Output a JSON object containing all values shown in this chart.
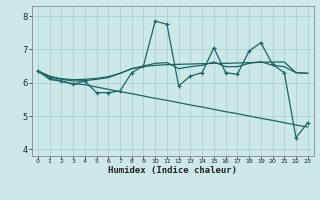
{
  "xlabel": "Humidex (Indice chaleur)",
  "bg_color": "#cce8e8",
  "grid_color": "#b8d8d8",
  "line_color": "#1a6666",
  "xlim": [
    -0.5,
    23.5
  ],
  "ylim": [
    3.8,
    8.3
  ],
  "xticks": [
    0,
    1,
    2,
    3,
    4,
    5,
    6,
    7,
    8,
    9,
    10,
    11,
    12,
    13,
    14,
    15,
    16,
    17,
    18,
    19,
    20,
    21,
    22,
    23
  ],
  "yticks": [
    4,
    5,
    6,
    7,
    8
  ],
  "series_main": [
    6.35,
    6.15,
    6.05,
    5.95,
    6.05,
    5.7,
    5.7,
    5.75,
    6.3,
    6.5,
    7.85,
    7.75,
    5.9,
    6.2,
    6.3,
    7.05,
    6.3,
    6.25,
    6.95,
    7.2,
    6.55,
    6.3,
    4.35,
    4.8
  ],
  "series_trend1": [
    6.35,
    6.18,
    6.12,
    6.09,
    6.1,
    6.13,
    6.18,
    6.28,
    6.42,
    6.48,
    6.52,
    6.54,
    6.55,
    6.56,
    6.57,
    6.58,
    6.58,
    6.59,
    6.6,
    6.61,
    6.62,
    6.62,
    6.3,
    6.28
  ],
  "series_trend2": [
    6.35,
    6.2,
    6.1,
    6.05,
    6.06,
    6.1,
    6.15,
    6.28,
    6.42,
    6.5,
    6.58,
    6.6,
    6.42,
    6.48,
    6.52,
    6.62,
    6.48,
    6.48,
    6.58,
    6.63,
    6.52,
    6.48,
    6.3,
    6.28
  ],
  "series_trend3": [
    6.35,
    6.1,
    6.04,
    5.97,
    5.94,
    5.87,
    5.8,
    5.73,
    5.67,
    5.6,
    5.53,
    5.47,
    5.4,
    5.33,
    5.27,
    5.2,
    5.13,
    5.07,
    5.0,
    4.93,
    4.87,
    4.8,
    4.73,
    4.67
  ]
}
